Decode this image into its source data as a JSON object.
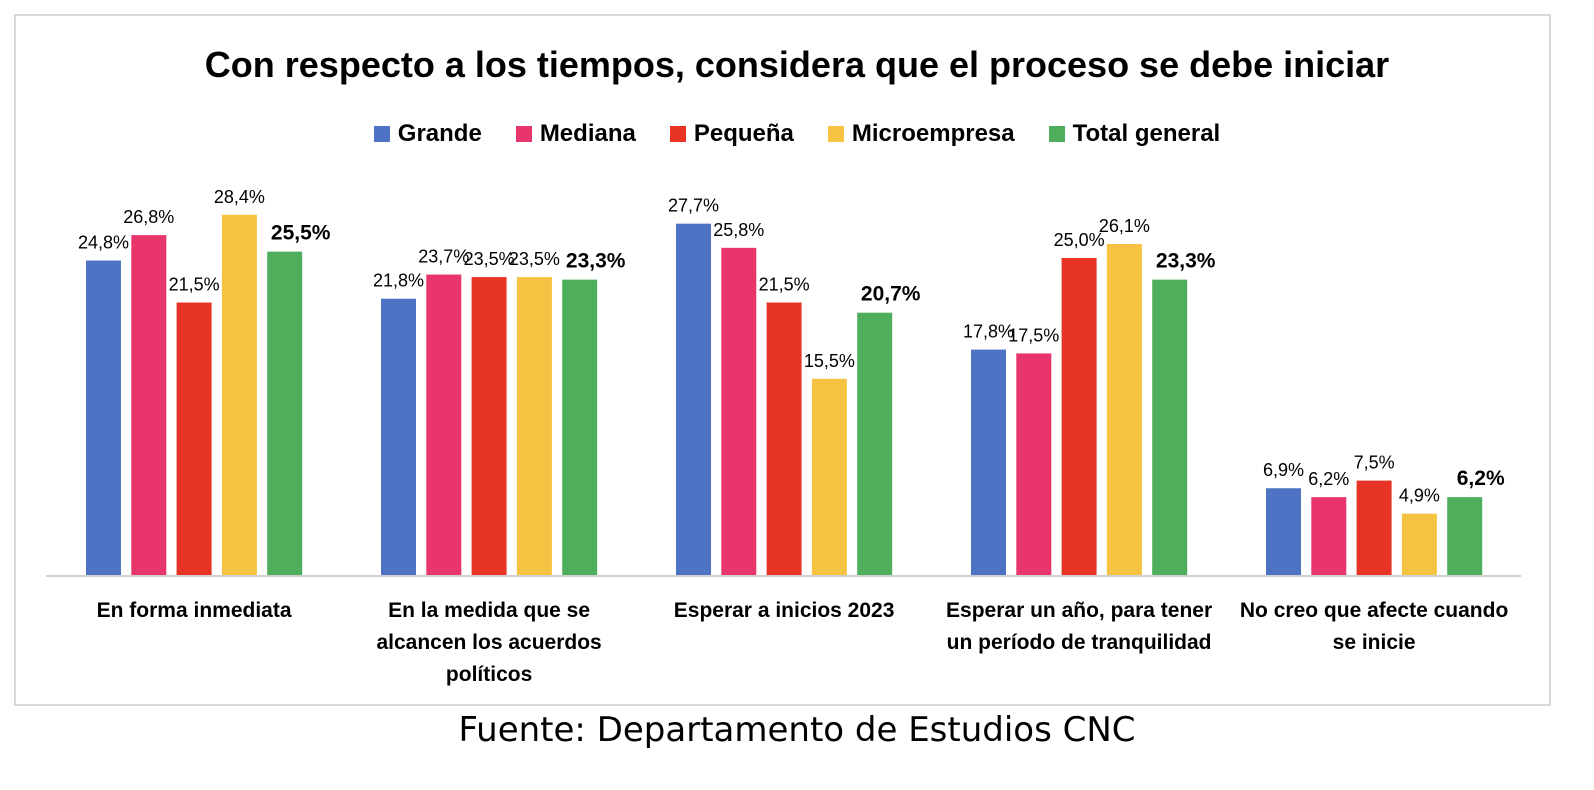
{
  "chart_data": {
    "type": "bar",
    "title": "Con respecto a los tiempos, considera que el proceso se debe iniciar",
    "categories": [
      "En forma inmediata",
      "En la medida que se alcancen los acuerdos políticos",
      "Esperar a inicios 2023",
      "Esperar un año, para tener un período de tranquilidad",
      "No creo que afecte cuando se inicie"
    ],
    "category_lines": [
      [
        "En forma inmediata"
      ],
      [
        "En la medida que se",
        "alcancen los acuerdos",
        "políticos"
      ],
      [
        "Esperar a inicios 2023"
      ],
      [
        "Esperar un año, para tener",
        "un período de tranquilidad"
      ],
      [
        "No creo que afecte cuando",
        "se inicie"
      ]
    ],
    "series": [
      {
        "name": "Grande",
        "color": "#4e73c4",
        "values": [
          24.8,
          21.8,
          27.7,
          17.8,
          6.9
        ],
        "labels": [
          "24,8%",
          "21,8%",
          "27,7%",
          "17,8%",
          "6,9%"
        ]
      },
      {
        "name": "Mediana",
        "color": "#e8356b",
        "values": [
          26.8,
          23.7,
          25.8,
          17.5,
          6.2
        ],
        "labels": [
          "26,8%",
          "23,7%",
          "25,8%",
          "17,5%",
          "6,2%"
        ]
      },
      {
        "name": "Pequeña",
        "color": "#e73427",
        "values": [
          21.5,
          23.5,
          21.5,
          25.0,
          7.5
        ],
        "labels": [
          "21,5%",
          "23,5%",
          "21,5%",
          "25,0%",
          "7,5%"
        ]
      },
      {
        "name": "Microempresa",
        "color": "#f5c242",
        "values": [
          28.4,
          23.5,
          15.5,
          26.1,
          4.9
        ],
        "labels": [
          "28,4%",
          "23,5%",
          "15,5%",
          "26,1%",
          "4,9%"
        ]
      },
      {
        "name": "Total general",
        "color": "#4fae5b",
        "values": [
          25.5,
          23.3,
          20.7,
          23.3,
          6.2
        ],
        "labels": [
          "25,5%",
          "23,3%",
          "20,7%",
          "23,3%",
          "6,2%"
        ]
      }
    ],
    "ylim": [
      0,
      31
    ],
    "grid": false,
    "legend_position": "top"
  },
  "source": "Fuente: Departamento de Estudios CNC"
}
